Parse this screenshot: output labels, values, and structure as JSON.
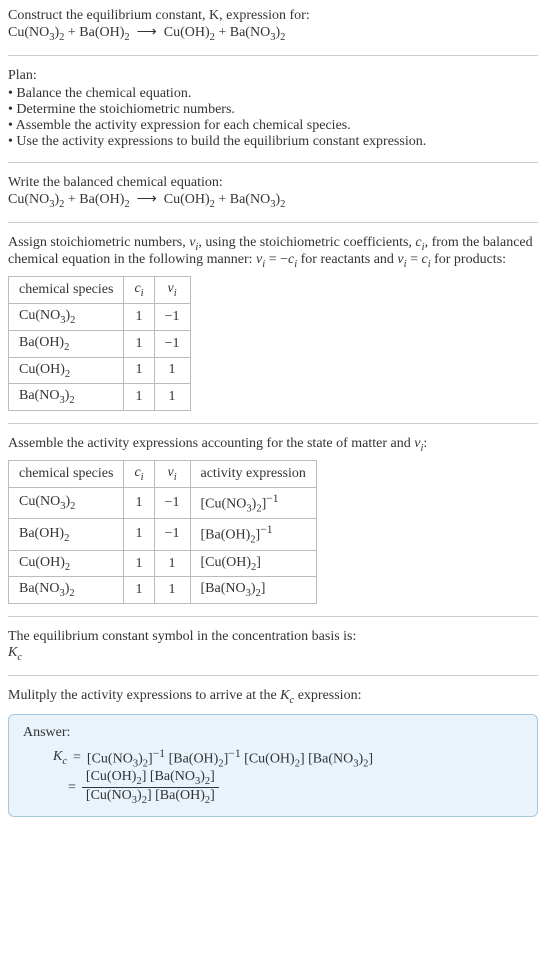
{
  "intro": {
    "line1": "Construct the equilibrium constant, K, expression for:",
    "equation_html": "Cu(NO<sub>3</sub>)<sub>2</sub> + Ba(OH)<sub>2</sub> &nbsp;⟶&nbsp; Cu(OH)<sub>2</sub> + Ba(NO<sub>3</sub>)<sub>2</sub>"
  },
  "plan": {
    "heading": "Plan:",
    "items": [
      "Balance the chemical equation.",
      "Determine the stoichiometric numbers.",
      "Assemble the activity expression for each chemical species.",
      "Use the activity expressions to build the equilibrium constant expression."
    ]
  },
  "balanced": {
    "heading": "Write the balanced chemical equation:",
    "equation_html": "Cu(NO<sub>3</sub>)<sub>2</sub> + Ba(OH)<sub>2</sub> &nbsp;⟶&nbsp; Cu(OH)<sub>2</sub> + Ba(NO<sub>3</sub>)<sub>2</sub>"
  },
  "stoich": {
    "intro_html": "Assign stoichiometric numbers, <span class=\"italic\">ν<sub>i</sub></span>, using the stoichiometric coefficients, <span class=\"italic\">c<sub>i</sub></span>, from the balanced chemical equation in the following manner: <span class=\"italic\">ν<sub>i</sub></span> = −<span class=\"italic\">c<sub>i</sub></span> for reactants and <span class=\"italic\">ν<sub>i</sub></span> = <span class=\"italic\">c<sub>i</sub></span> for products:",
    "headers": [
      "chemical species",
      "c<sub>i</sub>",
      "ν<sub>i</sub>"
    ],
    "rows": [
      [
        "Cu(NO<sub>3</sub>)<sub>2</sub>",
        "1",
        "−1"
      ],
      [
        "Ba(OH)<sub>2</sub>",
        "1",
        "−1"
      ],
      [
        "Cu(OH)<sub>2</sub>",
        "1",
        "1"
      ],
      [
        "Ba(NO<sub>3</sub>)<sub>2</sub>",
        "1",
        "1"
      ]
    ]
  },
  "activity": {
    "intro_html": "Assemble the activity expressions accounting for the state of matter and <span class=\"italic\">ν<sub>i</sub></span>:",
    "headers": [
      "chemical species",
      "c<sub>i</sub>",
      "ν<sub>i</sub>",
      "activity expression"
    ],
    "rows": [
      [
        "Cu(NO<sub>3</sub>)<sub>2</sub>",
        "1",
        "−1",
        "[Cu(NO<sub>3</sub>)<sub>2</sub>]<sup>−1</sup>"
      ],
      [
        "Ba(OH)<sub>2</sub>",
        "1",
        "−1",
        "[Ba(OH)<sub>2</sub>]<sup>−1</sup>"
      ],
      [
        "Cu(OH)<sub>2</sub>",
        "1",
        "1",
        "[Cu(OH)<sub>2</sub>]"
      ],
      [
        "Ba(NO<sub>3</sub>)<sub>2</sub>",
        "1",
        "1",
        "[Ba(NO<sub>3</sub>)<sub>2</sub>]"
      ]
    ]
  },
  "symbol": {
    "line1": "The equilibrium constant symbol in the concentration basis is:",
    "sym_html": "<span class=\"italic\">K<sub>c</sub></span>"
  },
  "multiply": {
    "line_html": "Mulitply the activity expressions to arrive at the <span class=\"italic\">K<sub>c</sub></span> expression:"
  },
  "answer": {
    "label": "Answer:",
    "kc_html": "<span class=\"italic\">K<sub>c</sub></span>",
    "line1_rhs_html": "[Cu(NO<sub>3</sub>)<sub>2</sub>]<sup>−1</sup> [Ba(OH)<sub>2</sub>]<sup>−1</sup> [Cu(OH)<sub>2</sub>] [Ba(NO<sub>3</sub>)<sub>2</sub>]",
    "frac_num_html": "[Cu(OH)<sub>2</sub>] [Ba(NO<sub>3</sub>)<sub>2</sub>]",
    "frac_den_html": "[Cu(NO<sub>3</sub>)<sub>2</sub>] [Ba(OH)<sub>2</sub>]"
  },
  "colors": {
    "answer_bg": "#e8f3fb",
    "answer_border": "#a8c8e0"
  }
}
